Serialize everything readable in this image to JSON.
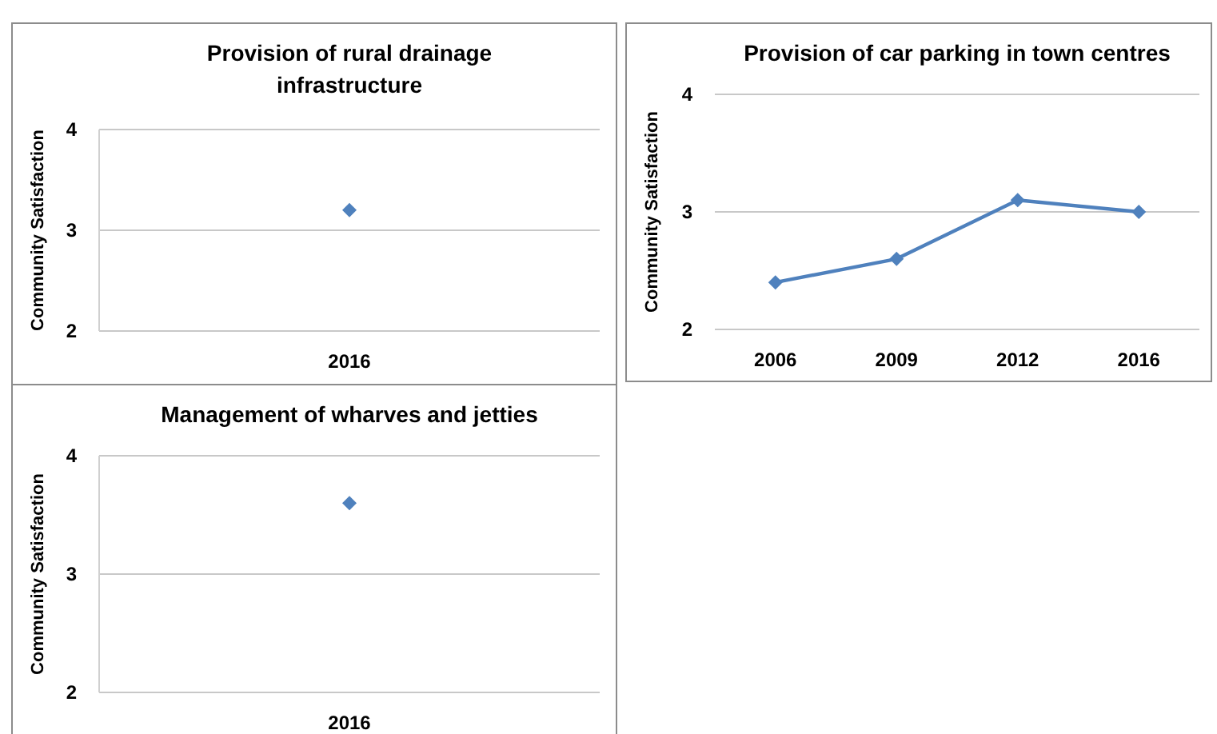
{
  "chart_data": [
    {
      "type": "line",
      "title": "Provision of rural drainage infrastructure",
      "ylabel": "Community Satisfaction",
      "categories": [
        "2016"
      ],
      "series": [
        {
          "color": "#4f81bd",
          "values": [
            3.2
          ]
        }
      ],
      "ylim": [
        2,
        4
      ],
      "yticks": [
        2,
        3,
        4
      ],
      "grid": "y",
      "marker": "diamond"
    },
    {
      "type": "line",
      "title": "Provision of car parking in town centres",
      "ylabel": "Community Satisfaction",
      "categories": [
        "2006",
        "2009",
        "2012",
        "2016"
      ],
      "series": [
        {
          "color": "#4f81bd",
          "values": [
            2.4,
            2.6,
            3.1,
            3.0
          ]
        }
      ],
      "ylim": [
        2,
        4
      ],
      "yticks": [
        2,
        3,
        4
      ],
      "grid": "y",
      "marker": "diamond"
    },
    {
      "type": "line",
      "title": "Management of wharves and jetties",
      "ylabel": "Community Satisfaction",
      "categories": [
        "2016"
      ],
      "series": [
        {
          "color": "#4f81bd",
          "values": [
            3.6
          ]
        }
      ],
      "ylim": [
        2,
        4
      ],
      "yticks": [
        2,
        3,
        4
      ],
      "grid": "y",
      "marker": "diamond"
    }
  ]
}
